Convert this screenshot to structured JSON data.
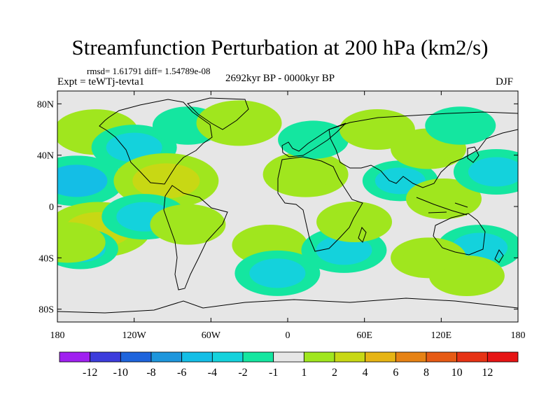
{
  "title": "Streamfunction Perturbation at 200 hPa (km2/s)",
  "stats": "rmsd= 1.61791 diff= 1.54789e-08",
  "experiment": "Expt = teWTj-tevta1",
  "period": "2692kyr BP - 0000kyr BP",
  "season": "DJF",
  "chart_data": {
    "type": "heatmap",
    "title": "Streamfunction Perturbation at 200 hPa (km2/s)",
    "xlabel": "",
    "ylabel": "",
    "xlim": [
      -180,
      180
    ],
    "ylim": [
      -90,
      90
    ],
    "x_ticks": [
      {
        "value": -180,
        "label": "180"
      },
      {
        "value": -120,
        "label": "120W"
      },
      {
        "value": -60,
        "label": "60W"
      },
      {
        "value": 0,
        "label": "0"
      },
      {
        "value": 60,
        "label": "60E"
      },
      {
        "value": 120,
        "label": "120E"
      },
      {
        "value": 180,
        "label": "180"
      }
    ],
    "y_ticks": [
      {
        "value": 80,
        "label": "80N"
      },
      {
        "value": 40,
        "label": "40N"
      },
      {
        "value": 0,
        "label": "0"
      },
      {
        "value": -40,
        "label": "40S"
      },
      {
        "value": -80,
        "label": "80S"
      }
    ],
    "colorbar": {
      "labels": [
        "-12",
        "-10",
        "-8",
        "-6",
        "-4",
        "-2",
        "-1",
        "1",
        "2",
        "4",
        "6",
        "8",
        "10",
        "12"
      ],
      "colors": [
        "#a020f0",
        "#3c3cdc",
        "#1e64dc",
        "#1e96dc",
        "#14bee6",
        "#14d2dc",
        "#14e6a0",
        "#e6e6e6",
        "#a0e61e",
        "#c8d814",
        "#e6b414",
        "#e68214",
        "#e65a14",
        "#e63214",
        "#e61414"
      ]
    },
    "anomalies": [
      {
        "lon": -150,
        "lat": 58,
        "value": 3
      },
      {
        "lon": -165,
        "lat": 20,
        "value": -4
      },
      {
        "lon": -148,
        "lat": -18,
        "value": 5
      },
      {
        "lon": -120,
        "lat": 46,
        "value": -3
      },
      {
        "lon": -95,
        "lat": 20,
        "value": 5
      },
      {
        "lon": -78,
        "lat": 63,
        "value": -1.5
      },
      {
        "lon": -38,
        "lat": 65,
        "value": 3
      },
      {
        "lon": -112,
        "lat": -8,
        "value": -3
      },
      {
        "lon": -78,
        "lat": -14,
        "value": 2
      },
      {
        "lon": -14,
        "lat": -30,
        "value": 2
      },
      {
        "lon": -8,
        "lat": -52,
        "value": -3
      },
      {
        "lon": -162,
        "lat": -33,
        "value": -2
      },
      {
        "lon": -172,
        "lat": -28,
        "value": 2
      },
      {
        "lon": 14,
        "lat": 25,
        "value": 3
      },
      {
        "lon": 20,
        "lat": 52,
        "value": -1.5
      },
      {
        "lon": 44,
        "lat": -34,
        "value": -3
      },
      {
        "lon": 52,
        "lat": -12,
        "value": 2
      },
      {
        "lon": 88,
        "lat": 20,
        "value": -2
      },
      {
        "lon": 70,
        "lat": 60,
        "value": 2
      },
      {
        "lon": 110,
        "lat": 45,
        "value": 2
      },
      {
        "lon": 122,
        "lat": 6,
        "value": 2
      },
      {
        "lon": 135,
        "lat": 63,
        "value": -1.5
      },
      {
        "lon": 163,
        "lat": 27,
        "value": -3
      },
      {
        "lon": 150,
        "lat": -32,
        "value": -3
      },
      {
        "lon": 110,
        "lat": -40,
        "value": 2
      },
      {
        "lon": 140,
        "lat": -54,
        "value": 2
      }
    ]
  }
}
